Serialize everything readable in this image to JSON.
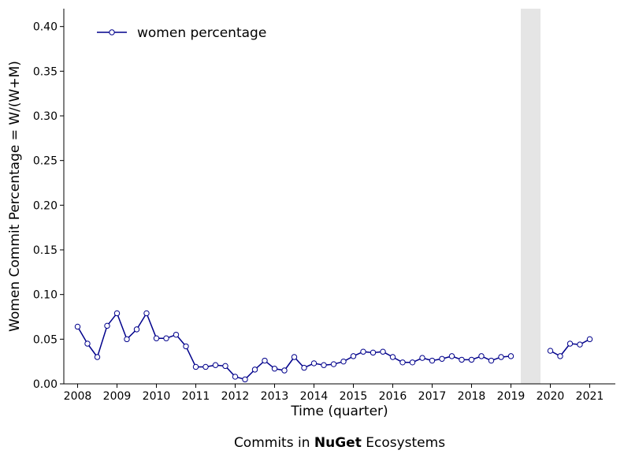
{
  "chart_data": {
    "type": "line",
    "ylabel": "Women Commit Percentage = W/(W+M)",
    "xlabel": "Time (quarter)",
    "caption": {
      "prefix": "Commits in ",
      "ecosystem": "NuGet",
      "suffix": " Ecosystems"
    },
    "xlim": [
      2007.65,
      2021.65
    ],
    "ylim": [
      0,
      0.42
    ],
    "x_ticks": [
      "2008",
      "2009",
      "2010",
      "2011",
      "2012",
      "2013",
      "2014",
      "2015",
      "2016",
      "2017",
      "2018",
      "2019",
      "2020",
      "2021"
    ],
    "y_ticks": [
      "0.00",
      "0.05",
      "0.10",
      "0.15",
      "0.20",
      "0.25",
      "0.30",
      "0.35",
      "0.40"
    ],
    "legend": {
      "placement": "top-left"
    },
    "highlight_band": {
      "x_start": 2019.25,
      "x_end": 2019.75,
      "color": "#e5e5e5"
    },
    "series": [
      {
        "name": "women percentage",
        "color": "#00008b",
        "marker_fill": "#ffffff",
        "segments": [
          {
            "x": [
              2008.0,
              2008.25,
              2008.5,
              2008.75,
              2009.0,
              2009.25,
              2009.5,
              2009.75,
              2010.0,
              2010.25,
              2010.5,
              2010.75,
              2011.0,
              2011.25,
              2011.5,
              2011.75,
              2012.0,
              2012.25,
              2012.5,
              2012.75,
              2013.0,
              2013.25,
              2013.5,
              2013.75,
              2014.0,
              2014.25,
              2014.5,
              2014.75,
              2015.0,
              2015.25,
              2015.5,
              2015.75,
              2016.0,
              2016.25,
              2016.5,
              2016.75,
              2017.0,
              2017.25,
              2017.5,
              2017.75,
              2018.0,
              2018.25,
              2018.5,
              2018.75,
              2019.0
            ],
            "y": [
              0.064,
              0.045,
              0.03,
              0.065,
              0.079,
              0.05,
              0.061,
              0.079,
              0.051,
              0.051,
              0.055,
              0.042,
              0.019,
              0.019,
              0.021,
              0.02,
              0.008,
              0.005,
              0.016,
              0.026,
              0.017,
              0.015,
              0.03,
              0.018,
              0.023,
              0.021,
              0.022,
              0.025,
              0.031,
              0.036,
              0.035,
              0.036,
              0.03,
              0.024,
              0.024,
              0.029,
              0.026,
              0.028,
              0.031,
              0.027,
              0.027,
              0.031,
              0.026,
              0.03,
              0.031
            ]
          },
          {
            "x": [
              2020.0,
              2020.25,
              2020.5,
              2020.75,
              2021.0
            ],
            "y": [
              0.037,
              0.031,
              0.045,
              0.044,
              0.05
            ]
          }
        ]
      }
    ]
  }
}
